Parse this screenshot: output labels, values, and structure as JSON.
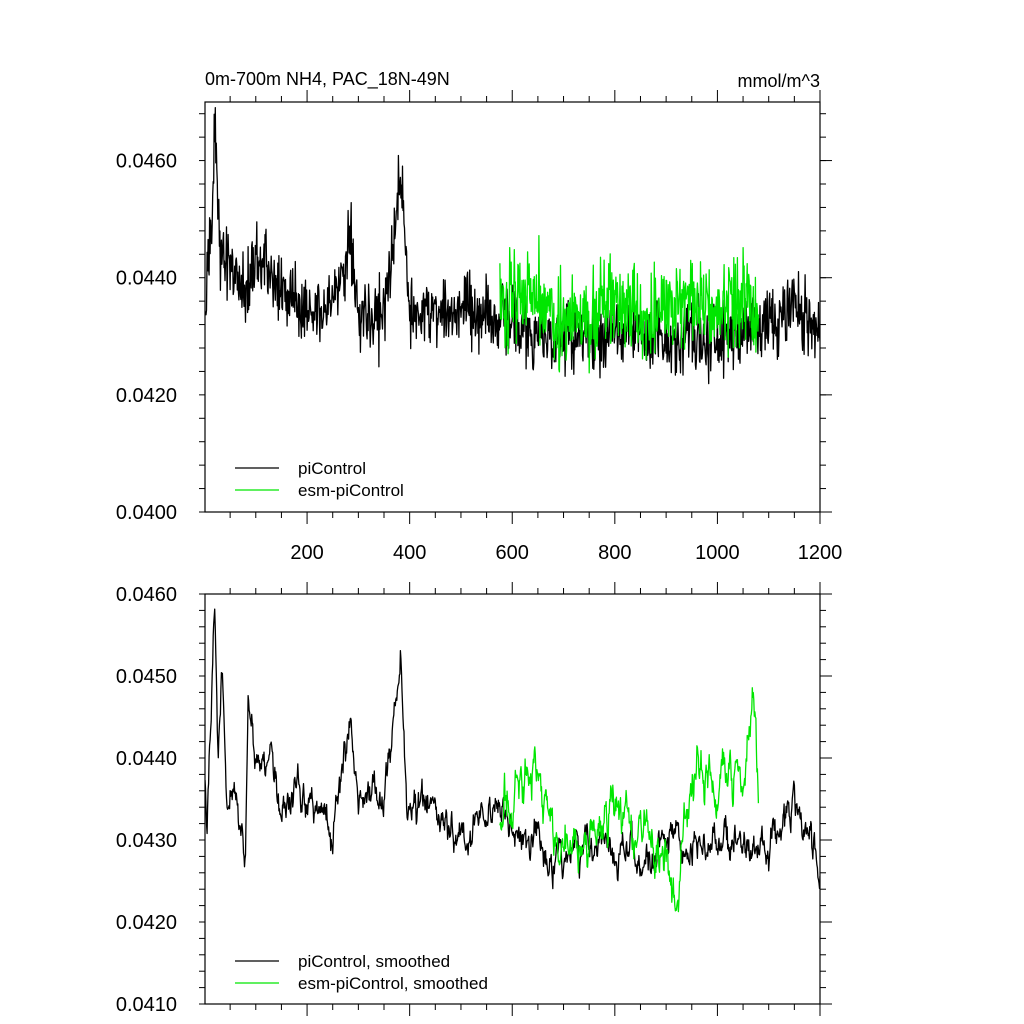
{
  "chart_data": [
    {
      "type": "line",
      "title_left": "0m-700m NH4, PAC_18N-49N",
      "title_right": "mmol/m^3",
      "xlim": [
        1,
        1200
      ],
      "ylim": [
        0.04,
        0.047
      ],
      "x_ticks": [
        200,
        400,
        600,
        800,
        1000,
        1200
      ],
      "y_ticks": [
        0.04,
        0.042,
        0.044,
        0.046
      ],
      "x_tick_labels": [
        "200",
        "400",
        "600",
        "800",
        "1000",
        "1200"
      ],
      "y_tick_labels": [
        "0.0400",
        "0.0420",
        "0.0440",
        "0.0460"
      ],
      "legend_position": "bottom-left",
      "series": [
        {
          "name": "piControl",
          "color": "#000000",
          "x_start": 1,
          "x_end": 1200,
          "anchors": [
            [
              1,
              0.0432
            ],
            [
              15,
              0.0452
            ],
            [
              20,
              0.0467
            ],
            [
              30,
              0.0444
            ],
            [
              50,
              0.0443
            ],
            [
              80,
              0.0437
            ],
            [
              100,
              0.0445
            ],
            [
              150,
              0.0437
            ],
            [
              200,
              0.0435
            ],
            [
              250,
              0.0436
            ],
            [
              285,
              0.0447
            ],
            [
              300,
              0.0434
            ],
            [
              350,
              0.0433
            ],
            [
              383,
              0.0458
            ],
            [
              400,
              0.0433
            ],
            [
              450,
              0.0435
            ],
            [
              500,
              0.0434
            ],
            [
              550,
              0.0433
            ],
            [
              600,
              0.0433
            ],
            [
              650,
              0.043
            ],
            [
              700,
              0.043
            ],
            [
              750,
              0.043
            ],
            [
              800,
              0.0431
            ],
            [
              850,
              0.0431
            ],
            [
              900,
              0.043
            ],
            [
              950,
              0.043
            ],
            [
              1000,
              0.043
            ],
            [
              1050,
              0.0431
            ],
            [
              1100,
              0.0432
            ],
            [
              1150,
              0.0435
            ],
            [
              1200,
              0.043
            ]
          ],
          "noise": 0.0009
        },
        {
          "name": "esm-piControl",
          "color": "#00e600",
          "x_start": 576,
          "x_end": 1080,
          "anchors": [
            [
              576,
              0.0434
            ],
            [
              600,
              0.0438
            ],
            [
              650,
              0.0438
            ],
            [
              700,
              0.0432
            ],
            [
              750,
              0.0433
            ],
            [
              800,
              0.0436
            ],
            [
              850,
              0.0433
            ],
            [
              900,
              0.0434
            ],
            [
              950,
              0.0437
            ],
            [
              1000,
              0.0435
            ],
            [
              1050,
              0.0436
            ],
            [
              1080,
              0.0433
            ]
          ],
          "noise": 0.00115
        }
      ]
    },
    {
      "type": "line",
      "xlim": [
        1,
        1200
      ],
      "ylim": [
        0.041,
        0.046
      ],
      "x_ticks": [
        200,
        400,
        600,
        800,
        1000,
        1200
      ],
      "y_ticks": [
        0.041,
        0.042,
        0.043,
        0.044,
        0.045,
        0.046
      ],
      "y_tick_labels": [
        "0.0410",
        "0.0420",
        "0.0430",
        "0.0440",
        "0.0450",
        "0.0460"
      ],
      "legend_position": "bottom-left",
      "series": [
        {
          "name": "piControl, smoothed",
          "color": "#000000",
          "x_start": 1,
          "x_end": 1200,
          "anchors": [
            [
              1,
              0.0437
            ],
            [
              5,
              0.0431
            ],
            [
              15,
              0.0448
            ],
            [
              20,
              0.0458
            ],
            [
              27,
              0.0441
            ],
            [
              35,
              0.045
            ],
            [
              45,
              0.0433
            ],
            [
              60,
              0.0437
            ],
            [
              80,
              0.0429
            ],
            [
              85,
              0.0446
            ],
            [
              100,
              0.0438
            ],
            [
              130,
              0.0441
            ],
            [
              150,
              0.0434
            ],
            [
              200,
              0.0436
            ],
            [
              250,
              0.0431
            ],
            [
              285,
              0.0446
            ],
            [
              300,
              0.0434
            ],
            [
              350,
              0.0436
            ],
            [
              383,
              0.0453
            ],
            [
              395,
              0.0434
            ],
            [
              450,
              0.0433
            ],
            [
              500,
              0.043
            ],
            [
              550,
              0.0433
            ],
            [
              600,
              0.0432
            ],
            [
              650,
              0.0429
            ],
            [
              700,
              0.0428
            ],
            [
              750,
              0.043
            ],
            [
              800,
              0.0429
            ],
            [
              850,
              0.0428
            ],
            [
              900,
              0.043
            ],
            [
              950,
              0.0429
            ],
            [
              1000,
              0.043
            ],
            [
              1050,
              0.0429
            ],
            [
              1100,
              0.0429
            ],
            [
              1150,
              0.0435
            ],
            [
              1180,
              0.043
            ],
            [
              1200,
              0.0426
            ]
          ],
          "noise": 0.00045
        },
        {
          "name": "esm-piControl, smoothed",
          "color": "#00e600",
          "x_start": 576,
          "x_end": 1080,
          "anchors": [
            [
              576,
              0.0432
            ],
            [
              600,
              0.0436
            ],
            [
              650,
              0.0438
            ],
            [
              700,
              0.0428
            ],
            [
              750,
              0.043
            ],
            [
              800,
              0.0433
            ],
            [
              850,
              0.0432
            ],
            [
              900,
              0.0428
            ],
            [
              920,
              0.042
            ],
            [
              950,
              0.044
            ],
            [
              1000,
              0.0437
            ],
            [
              1050,
              0.0438
            ],
            [
              1075,
              0.0446
            ],
            [
              1080,
              0.0436
            ]
          ],
          "noise": 0.0006
        }
      ]
    }
  ]
}
